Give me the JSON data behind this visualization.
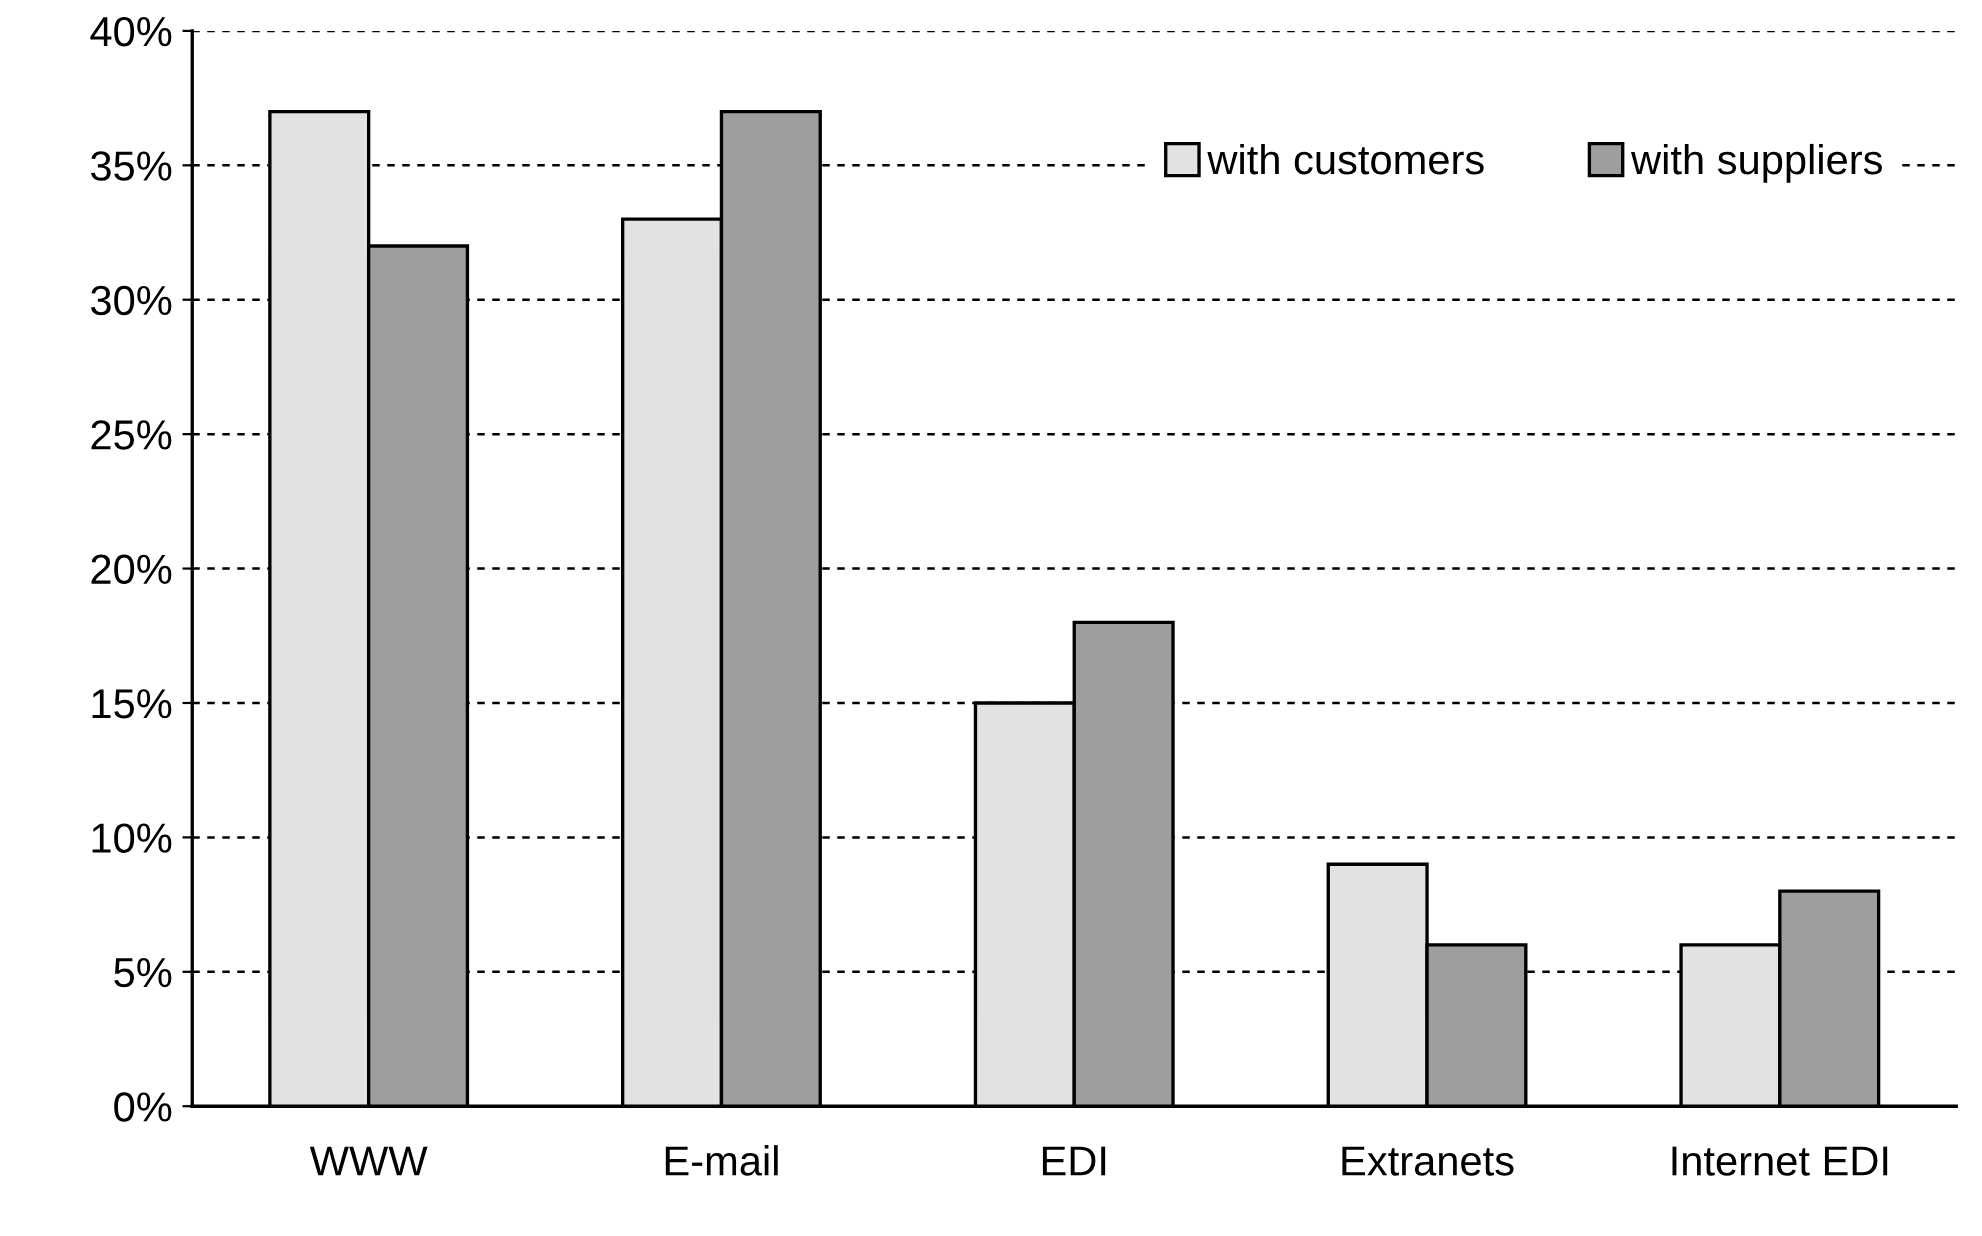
{
  "chart_data": {
    "type": "bar",
    "categories": [
      "WWW",
      "E-mail",
      "EDI",
      "Extranets",
      "Internet EDI"
    ],
    "series": [
      {
        "name": "with customers",
        "color": "#e2e2e2",
        "values": [
          37,
          33,
          15,
          9,
          6
        ]
      },
      {
        "name": "with suppliers",
        "color": "#9e9e9e",
        "values": [
          32,
          37,
          18,
          6,
          8
        ]
      }
    ],
    "ylim": [
      0,
      40
    ],
    "yticks": [
      {
        "value": 0,
        "label": "0%"
      },
      {
        "value": 5,
        "label": "5%"
      },
      {
        "value": 10,
        "label": "10%"
      },
      {
        "value": 15,
        "label": "15%"
      },
      {
        "value": 20,
        "label": "20%"
      },
      {
        "value": 25,
        "label": "25%"
      },
      {
        "value": 30,
        "label": "30%"
      },
      {
        "value": 35,
        "label": "35%"
      },
      {
        "value": 40,
        "label": "40%"
      }
    ],
    "grid": "y",
    "legend": "top right"
  }
}
